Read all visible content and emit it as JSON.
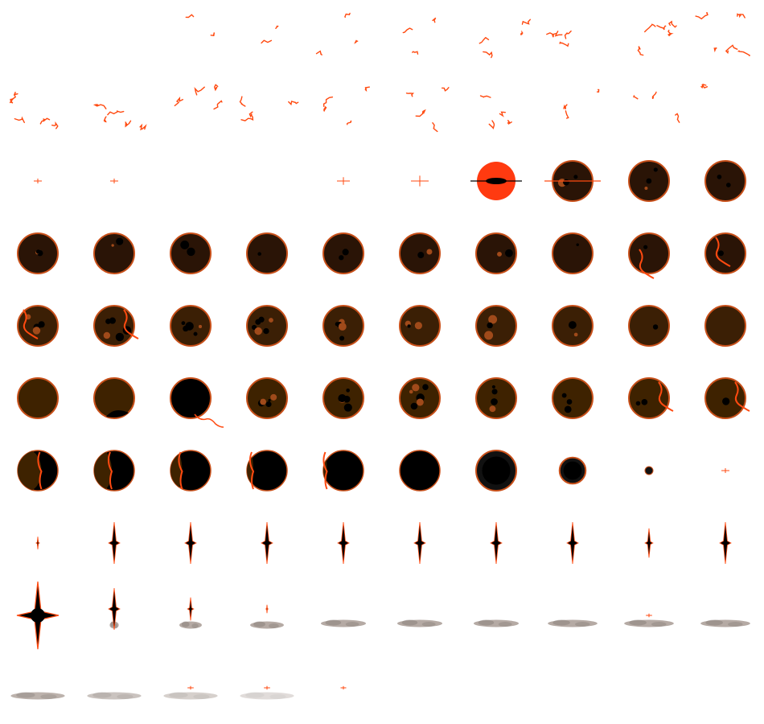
{
  "sheet": {
    "title": "",
    "columns": 10,
    "rows": 10,
    "frame_count": 95
  },
  "palette": {
    "crack": "#ff4a10",
    "crack_dark": "#c0300a",
    "planet_rim": "#c8501a",
    "planet_dark": "#2a1406",
    "planet_mid": "#3b1f05",
    "planet_brown": "#3e2200",
    "core_black": "#000000",
    "flash": "#ff3a10",
    "smoke": "#b5aaa4",
    "smoke_dark": "#8f8580"
  },
  "frames": [
    {
      "kind": "empty"
    },
    {
      "kind": "empty"
    },
    {
      "kind": "crack",
      "level": 1
    },
    {
      "kind": "crack",
      "level": 1
    },
    {
      "kind": "crack",
      "level": 2
    },
    {
      "kind": "crack",
      "level": 2
    },
    {
      "kind": "crack",
      "level": 3
    },
    {
      "kind": "crack",
      "level": 3
    },
    {
      "kind": "crack",
      "level": 4
    },
    {
      "kind": "crack",
      "level": 4
    },
    {
      "kind": "crack",
      "level": 4
    },
    {
      "kind": "crack",
      "level": 4
    },
    {
      "kind": "crack",
      "level": 3
    },
    {
      "kind": "crack",
      "level": 3
    },
    {
      "kind": "crack",
      "level": 3
    },
    {
      "kind": "crack",
      "level": 3
    },
    {
      "kind": "crack",
      "level": 3
    },
    {
      "kind": "crack",
      "level": 2
    },
    {
      "kind": "crack",
      "level": 2
    },
    {
      "kind": "crack",
      "level": 1
    },
    {
      "kind": "spark",
      "size": 1
    },
    {
      "kind": "spark",
      "size": 1
    },
    {
      "kind": "empty"
    },
    {
      "kind": "empty"
    },
    {
      "kind": "spark",
      "size": 2
    },
    {
      "kind": "spark",
      "size": 3
    },
    {
      "kind": "flash"
    },
    {
      "kind": "planet",
      "body": "dark",
      "spots": 3,
      "flare": true
    },
    {
      "kind": "planet",
      "body": "dark",
      "spots": 3
    },
    {
      "kind": "planet",
      "body": "dark",
      "spots": 2
    },
    {
      "kind": "planet",
      "body": "dark",
      "spots": 3
    },
    {
      "kind": "planet",
      "body": "dark",
      "spots": 2
    },
    {
      "kind": "planet",
      "body": "dark",
      "spots": 2
    },
    {
      "kind": "planet",
      "body": "dark",
      "spots": 1
    },
    {
      "kind": "planet",
      "body": "dark",
      "spots": 2
    },
    {
      "kind": "planet",
      "body": "dark",
      "spots": 2
    },
    {
      "kind": "planet",
      "body": "dark",
      "spots": 2
    },
    {
      "kind": "planet",
      "body": "dark",
      "spots": 1
    },
    {
      "kind": "planet",
      "body": "dark",
      "spots": 1,
      "vein": "low"
    },
    {
      "kind": "planet",
      "body": "dark",
      "spots": 1,
      "vein": "high"
    },
    {
      "kind": "planet",
      "body": "mid",
      "spots": 4,
      "vein": "left"
    },
    {
      "kind": "planet",
      "body": "mid",
      "spots": 5,
      "vein": "right"
    },
    {
      "kind": "planet",
      "body": "mid",
      "spots": 6
    },
    {
      "kind": "planet",
      "body": "mid",
      "spots": 6
    },
    {
      "kind": "planet",
      "body": "mid",
      "spots": 5
    },
    {
      "kind": "planet",
      "body": "mid",
      "spots": 4
    },
    {
      "kind": "planet",
      "body": "mid",
      "spots": 3
    },
    {
      "kind": "planet",
      "body": "mid",
      "spots": 2
    },
    {
      "kind": "planet",
      "body": "mid",
      "spots": 1
    },
    {
      "kind": "planet",
      "body": "mid",
      "spots": 0
    },
    {
      "kind": "planet",
      "body": "brown",
      "spots": 0
    },
    {
      "kind": "planet",
      "body": "brown",
      "spots": 0,
      "shadow": "bottom"
    },
    {
      "kind": "planet",
      "body": "black",
      "spots": 0,
      "tail": true
    },
    {
      "kind": "planet",
      "body": "brown",
      "spots": 5
    },
    {
      "kind": "planet",
      "body": "brown",
      "spots": 5
    },
    {
      "kind": "planet",
      "body": "brown",
      "spots": 6
    },
    {
      "kind": "planet",
      "body": "brown",
      "spots": 4
    },
    {
      "kind": "planet",
      "body": "brown",
      "spots": 3
    },
    {
      "kind": "planet",
      "body": "brown",
      "spots": 2,
      "vein": "right"
    },
    {
      "kind": "planet",
      "body": "brown",
      "spots": 1,
      "vein": "edge"
    },
    {
      "kind": "eclipse",
      "lit": 0.55
    },
    {
      "kind": "eclipse",
      "lit": 0.4
    },
    {
      "kind": "eclipse",
      "lit": 0.25
    },
    {
      "kind": "eclipse",
      "lit": 0.12
    },
    {
      "kind": "eclipse",
      "lit": 0.05
    },
    {
      "kind": "eclipse",
      "lit": 0
    },
    {
      "kind": "shrink",
      "size": 1.0
    },
    {
      "kind": "shrink",
      "size": 0.65
    },
    {
      "kind": "shrink",
      "size": 0.2
    },
    {
      "kind": "spark",
      "size": 1
    },
    {
      "kind": "star",
      "size": 0.3
    },
    {
      "kind": "star",
      "size": 1
    },
    {
      "kind": "star",
      "size": 1
    },
    {
      "kind": "star",
      "size": 1
    },
    {
      "kind": "star",
      "size": 1
    },
    {
      "kind": "star",
      "size": 1
    },
    {
      "kind": "star",
      "size": 1
    },
    {
      "kind": "star",
      "size": 1
    },
    {
      "kind": "star",
      "size": 0.7
    },
    {
      "kind": "star",
      "size": 1
    },
    {
      "kind": "big_star"
    },
    {
      "kind": "star",
      "size": 1,
      "smoke": 0.2
    },
    {
      "kind": "star",
      "size": 0.55,
      "smoke": 0.5
    },
    {
      "kind": "star",
      "size": 0.2,
      "smoke": 0.75
    },
    {
      "kind": "smoke",
      "width": 1
    },
    {
      "kind": "smoke",
      "width": 1
    },
    {
      "kind": "smoke",
      "width": 1
    },
    {
      "kind": "smoke",
      "width": 1.1
    },
    {
      "kind": "smoke",
      "width": 1.1,
      "spark": true
    },
    {
      "kind": "smoke",
      "width": 1.1
    },
    {
      "kind": "smoke",
      "width": 1.2,
      "fade": 0.9
    },
    {
      "kind": "smoke",
      "width": 1.2,
      "fade": 0.7
    },
    {
      "kind": "smoke",
      "width": 1.2,
      "fade": 0.55,
      "spark": true
    },
    {
      "kind": "smoke",
      "width": 1.2,
      "fade": 0.4,
      "spark": true
    },
    {
      "kind": "spark",
      "size": 0.5
    }
  ]
}
